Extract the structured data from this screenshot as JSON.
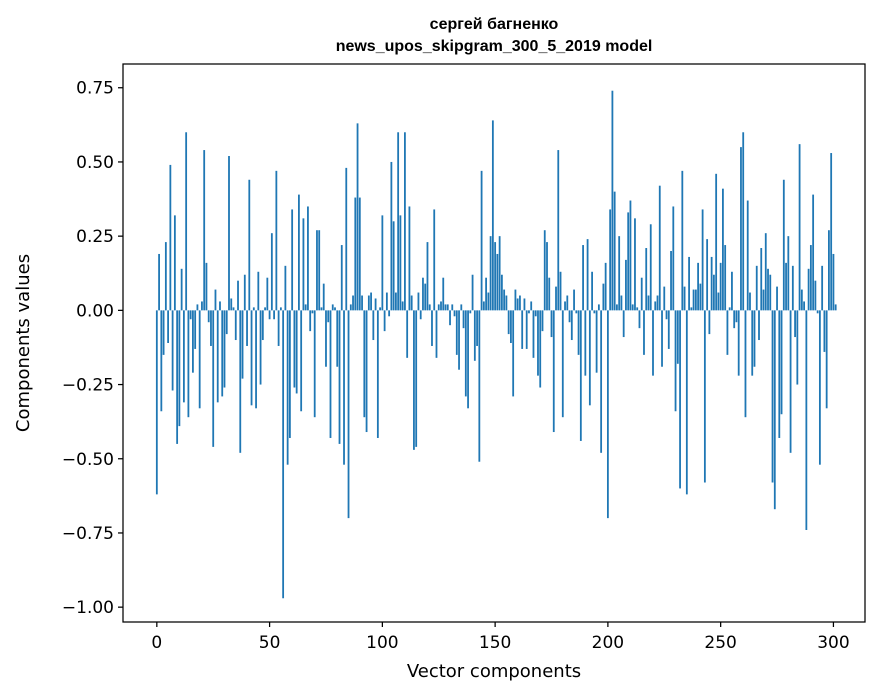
{
  "chart_data": {
    "type": "bar",
    "title": "сергей багненко",
    "subtitle": "news_upos_skipgram_300_5_2019 model",
    "xlabel": "Vector components",
    "ylabel": "Components values",
    "xlim": [
      -15,
      314
    ],
    "ylim": [
      -1.05,
      0.83
    ],
    "x_ticks": [
      0,
      50,
      100,
      150,
      200,
      250,
      300
    ],
    "y_ticks": [
      0.75,
      0.5,
      0.25,
      0.0,
      -0.25,
      -0.5,
      -0.75,
      -1.0
    ],
    "x_tick_labels": [
      "0",
      "50",
      "100",
      "150",
      "200",
      "250",
      "300"
    ],
    "y_tick_labels": [
      "0.75",
      "0.50",
      "0.25",
      "0.00",
      "−0.25",
      "−0.50",
      "−0.75",
      "−1.00"
    ],
    "bar_color": "#1f77b4",
    "series": [
      {
        "name": "components",
        "values": [
          -0.62,
          0.19,
          -0.34,
          -0.15,
          0.23,
          -0.11,
          0.49,
          -0.27,
          0.32,
          -0.45,
          -0.39,
          0.14,
          -0.31,
          0.6,
          -0.36,
          -0.03,
          -0.21,
          -0.13,
          0.02,
          -0.33,
          0.03,
          0.54,
          0.16,
          -0.04,
          -0.12,
          -0.46,
          0.07,
          -0.31,
          0.03,
          -0.29,
          -0.26,
          -0.08,
          0.52,
          0.04,
          0.01,
          -0.1,
          0.1,
          -0.48,
          -0.23,
          0.12,
          -0.12,
          0.44,
          -0.32,
          0.01,
          -0.33,
          0.13,
          -0.25,
          -0.1,
          0.01,
          0.11,
          -0.03,
          0.26,
          -0.03,
          0.47,
          -0.12,
          0.01,
          -0.97,
          0.15,
          -0.52,
          -0.43,
          0.34,
          -0.26,
          -0.28,
          0.39,
          -0.34,
          0.31,
          0.02,
          0.35,
          -0.07,
          -0.01,
          -0.36,
          0.27,
          0.27,
          0.01,
          0.09,
          -0.19,
          -0.04,
          -0.43,
          0.02,
          0.01,
          -0.19,
          -0.45,
          0.22,
          -0.52,
          0.48,
          -0.7,
          0.02,
          0.05,
          0.38,
          0.63,
          0.38,
          0.05,
          -0.36,
          -0.41,
          0.05,
          0.06,
          -0.1,
          0.04,
          -0.43,
          0.01,
          0.32,
          -0.07,
          0.06,
          -0.02,
          0.5,
          0.3,
          0.06,
          0.6,
          0.32,
          0.03,
          0.6,
          -0.16,
          0.35,
          0.05,
          -0.47,
          -0.46,
          0.06,
          -0.03,
          0.11,
          0.09,
          0.23,
          0.02,
          -0.12,
          0.34,
          -0.16,
          0.02,
          0.03,
          0.11,
          0.02,
          0.02,
          -0.05,
          0.02,
          -0.02,
          -0.15,
          -0.2,
          0.02,
          -0.06,
          -0.29,
          -0.33,
          -0.01,
          0.12,
          -0.17,
          -0.12,
          -0.51,
          0.47,
          0.03,
          0.11,
          0.06,
          0.25,
          0.64,
          0.23,
          0.19,
          0.25,
          0.12,
          0.07,
          0.05,
          -0.08,
          -0.11,
          -0.29,
          0.07,
          0.04,
          0.05,
          -0.13,
          0.04,
          -0.13,
          -0.01,
          0.03,
          -0.16,
          -0.02,
          -0.22,
          -0.26,
          -0.07,
          0.27,
          0.23,
          0.11,
          -0.09,
          -0.41,
          0.08,
          0.54,
          0.13,
          -0.36,
          0.03,
          0.05,
          -0.04,
          -0.1,
          0.07,
          -0.01,
          -0.15,
          -0.44,
          0.22,
          -0.22,
          0.24,
          -0.32,
          0.13,
          -0.01,
          -0.21,
          0.02,
          -0.48,
          0.09,
          0.16,
          -0.7,
          0.34,
          0.74,
          0.4,
          0.02,
          0.25,
          0.05,
          -0.09,
          0.17,
          0.33,
          0.37,
          0.02,
          0.31,
          0.01,
          -0.06,
          0.11,
          -0.15,
          0.21,
          0.05,
          0.29,
          -0.22,
          0.03,
          0.05,
          0.42,
          -0.19,
          0.08,
          -0.03,
          -0.13,
          0.2,
          0.35,
          -0.34,
          -0.18,
          -0.6,
          0.47,
          0.08,
          -0.62,
          0.18,
          0.01,
          0.07,
          0.07,
          0.16,
          0.09,
          0.34,
          -0.58,
          0.24,
          -0.08,
          0.18,
          0.12,
          0.46,
          0.06,
          0.16,
          0.41,
          0.22,
          -0.15,
          0.01,
          0.13,
          -0.06,
          -0.04,
          -0.22,
          0.55,
          0.6,
          -0.36,
          0.37,
          0.06,
          -0.22,
          -0.19,
          0.15,
          -0.1,
          0.21,
          0.07,
          0.26,
          0.14,
          0.12,
          -0.58,
          -0.67,
          0.08,
          -0.43,
          -0.35,
          0.44,
          0.16,
          0.25,
          -0.48,
          0.15,
          -0.09,
          -0.25,
          0.56,
          0.07,
          0.03,
          -0.74,
          0.14,
          0.22,
          0.39,
          0.1,
          -0.01,
          -0.52,
          0.15,
          -0.14,
          -0.33,
          0.27,
          0.53,
          0.19,
          0.02
        ]
      }
    ]
  }
}
